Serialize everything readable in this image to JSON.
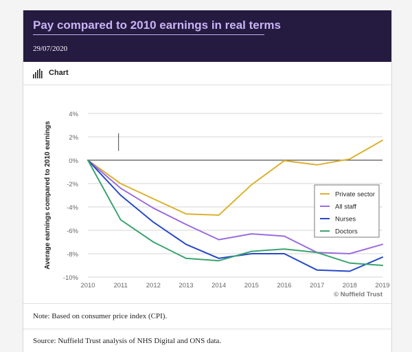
{
  "header": {
    "title": "Pay compared to 2010 earnings in real terms",
    "date": "29/07/2020"
  },
  "tab": {
    "label": "Chart",
    "icon": "bar-chart-icon"
  },
  "chart_data": {
    "type": "line",
    "ylabel": "Average earnings compared to 2010 earnings",
    "xlabel": "",
    "x": [
      2010,
      2011,
      2012,
      2013,
      2014,
      2015,
      2016,
      2017,
      2018,
      2019
    ],
    "x_tick_labels": [
      "2010",
      "2011",
      "2012",
      "2013",
      "2014",
      "2015",
      "2016",
      "2017",
      "2018",
      "2019"
    ],
    "y_ticks": [
      4,
      2,
      0,
      -2,
      -4,
      -6,
      -8,
      -10
    ],
    "y_tick_labels": [
      "4%",
      "2%",
      "0%",
      "-2%",
      "-4%",
      "-6%",
      "-8%",
      "-10%"
    ],
    "ylim": [
      -10,
      4
    ],
    "grid": true,
    "legend_position": "right",
    "series": [
      {
        "name": "Private sector",
        "color": "#dbb12e",
        "values": [
          0,
          -2.0,
          -3.3,
          -4.6,
          -4.7,
          -2.1,
          -0.05,
          -0.4,
          0.1,
          1.7
        ]
      },
      {
        "name": "All staff",
        "color": "#9b6be0",
        "values": [
          0,
          -2.4,
          -4.1,
          -5.5,
          -6.8,
          -6.3,
          -6.5,
          -7.9,
          -8.0,
          -7.2
        ]
      },
      {
        "name": "Nurses",
        "color": "#2448c8",
        "values": [
          0,
          -3.0,
          -5.3,
          -7.2,
          -8.4,
          -8.0,
          -8.0,
          -9.4,
          -9.5,
          -8.3
        ]
      },
      {
        "name": "Doctors",
        "color": "#3aa36e",
        "values": [
          0,
          -5.1,
          -7.0,
          -8.4,
          -8.6,
          -7.8,
          -7.6,
          -7.9,
          -8.8,
          -9.0
        ]
      }
    ],
    "watermark": "© Nuffield Trust"
  },
  "note": "Note:  Based on consumer price index (CPI).",
  "source": "Source:  Nuffield Trust analysis of NHS Digital and ONS data."
}
